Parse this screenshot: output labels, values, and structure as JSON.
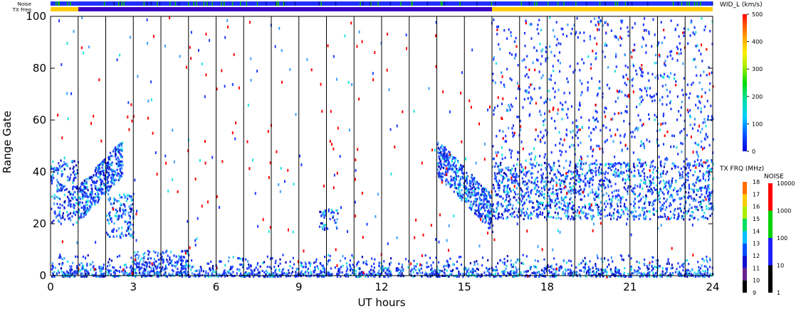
{
  "chart_data": {
    "type": "heatmap",
    "xlabel": "UT hours",
    "ylabel": "Range Gate",
    "xlim": [
      0,
      24
    ],
    "ylim": [
      0,
      100
    ],
    "x_ticks": [
      "0",
      "3",
      "6",
      "9",
      "12",
      "15",
      "18",
      "21",
      "24"
    ],
    "y_ticks": [
      "0",
      "20",
      "40",
      "60",
      "80",
      "100"
    ],
    "grid": "vertical lines each hour",
    "top_strips": [
      {
        "label": "Noise",
        "dominant_color": "#2020ff"
      },
      {
        "label": "TX Freq",
        "dominant_color": "#ffcc00",
        "note_segment": [
          1.0,
          16.0
        ],
        "segment_color": "#3a00c8"
      }
    ],
    "colorbar_width": {
      "title": "WID_L (km/s)",
      "range": [
        0,
        500
      ],
      "ticks": [
        "0",
        "100",
        "200",
        "300",
        "400",
        "500"
      ]
    },
    "colorbar_txfreq": {
      "title": "TX FRQ (MHz)",
      "ticks": [
        "9",
        "10",
        "11",
        "12",
        "13",
        "14",
        "15",
        "16",
        "17",
        "18"
      ]
    },
    "colorbar_noise": {
      "title": "NOISE",
      "ticks": [
        "1",
        "10",
        "100",
        "1000",
        "10000"
      ]
    },
    "echo_regions": [
      {
        "t": [
          0.0,
          1.0
        ],
        "gate": [
          20,
          45
        ],
        "desc": "band"
      },
      {
        "t": [
          1.0,
          2.6
        ],
        "gate": [
          22,
          55
        ],
        "desc": "rising band"
      },
      {
        "t": [
          2.0,
          3.0
        ],
        "gate": [
          15,
          32
        ],
        "desc": "lower patch"
      },
      {
        "t": [
          3.0,
          5.0
        ],
        "gate": [
          3,
          10
        ],
        "desc": "low patch"
      },
      {
        "t": [
          9.7,
          10.4
        ],
        "gate": [
          18,
          26
        ],
        "desc": "blob"
      },
      {
        "t": [
          14.0,
          16.0
        ],
        "gate": [
          16,
          48
        ],
        "desc": "descending band"
      },
      {
        "t": [
          16.0,
          24.0
        ],
        "gate": [
          22,
          44
        ],
        "desc": "main band"
      },
      {
        "t": [
          0.0,
          24.0
        ],
        "gate": [
          0,
          9
        ],
        "desc": "ground scatter"
      }
    ],
    "colors": {
      "dominant": "#1e3cff",
      "secondary": "#0a10b0",
      "light": "#3ca0ff",
      "cyan": "#20e0e0",
      "sparse_dots": "#ff0000"
    }
  }
}
